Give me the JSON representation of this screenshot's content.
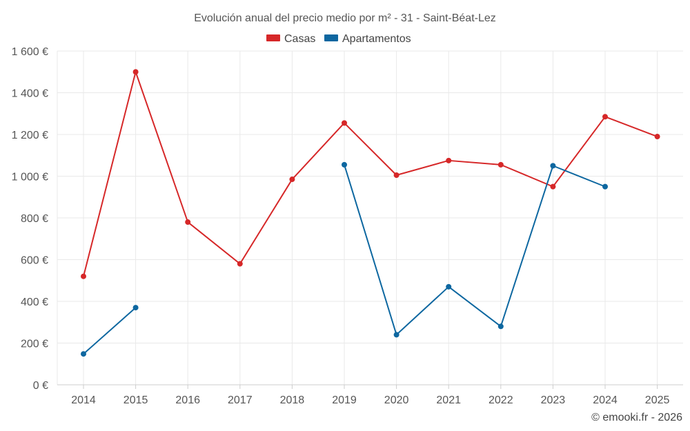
{
  "chart_data": {
    "type": "line",
    "title": "Evolución anual del precio medio por m² - 31 - Saint-Béat-Lez",
    "xlabel": "",
    "ylabel": "",
    "categories": [
      "2014",
      "2015",
      "2016",
      "2017",
      "2018",
      "2019",
      "2020",
      "2021",
      "2022",
      "2023",
      "2024",
      "2025"
    ],
    "ylim": [
      0,
      1600
    ],
    "yticks": [
      0,
      200,
      400,
      600,
      800,
      1000,
      1200,
      1400,
      1600
    ],
    "ytick_labels": [
      "0 €",
      "200 €",
      "400 €",
      "600 €",
      "800 €",
      "1 000 €",
      "1 200 €",
      "1 400 €",
      "1 600 €"
    ],
    "grid": true,
    "legend_position": "top-center",
    "series": [
      {
        "name": "Casas",
        "color": "#d62728",
        "values": [
          520,
          1500,
          780,
          580,
          985,
          1255,
          1005,
          1075,
          1055,
          950,
          1285,
          1190
        ]
      },
      {
        "name": "Apartamentos",
        "color": "#0d67a0",
        "values": [
          148,
          370,
          null,
          null,
          null,
          1055,
          240,
          470,
          280,
          1050,
          950,
          null
        ]
      }
    ]
  },
  "credit": "© emooki.fr - 2026"
}
